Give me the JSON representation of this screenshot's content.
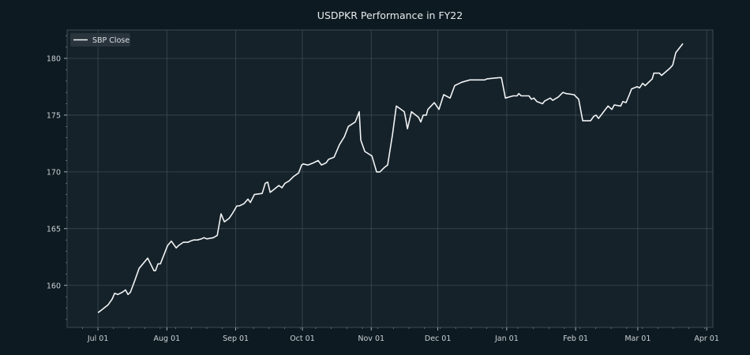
{
  "chart_data": {
    "type": "line",
    "title": "USDPKR Performance in FY22",
    "xlabel": "",
    "ylabel": "",
    "x_units": "days since 2021-07-01",
    "xlim": [
      -13.9,
      276.8
    ],
    "ylim": [
      156.3,
      182.5
    ],
    "grid": true,
    "legend_position": "top-left",
    "x_ticks": [
      {
        "value": 0,
        "label": "Jul 01"
      },
      {
        "value": 31,
        "label": "Aug 01"
      },
      {
        "value": 62,
        "label": "Sep 01"
      },
      {
        "value": 92,
        "label": "Oct 01"
      },
      {
        "value": 123,
        "label": "Nov 01"
      },
      {
        "value": 153,
        "label": "Dec 01"
      },
      {
        "value": 184,
        "label": "Jan 01"
      },
      {
        "value": 215,
        "label": "Feb 01"
      },
      {
        "value": 243,
        "label": "Mar 01"
      },
      {
        "value": 274,
        "label": "Apr 01"
      }
    ],
    "y_ticks": [
      {
        "value": 160,
        "label": "160"
      },
      {
        "value": 165,
        "label": "165"
      },
      {
        "value": 170,
        "label": "170"
      },
      {
        "value": 175,
        "label": "175"
      },
      {
        "value": 180,
        "label": "180"
      }
    ],
    "series": [
      {
        "name": "SBP Close",
        "color": "#f2f4f5",
        "x": [
          0,
          1.4,
          4.6,
          6.4,
          7.5,
          8.9,
          11,
          12.4,
          13.5,
          14.6,
          16.7,
          18.5,
          22.4,
          25.2,
          25.9,
          27,
          28.1,
          31.3,
          33,
          35.2,
          36.2,
          38.4,
          39.8,
          40.5,
          41.6,
          43,
          44.8,
          46.6,
          47.6,
          49,
          51.9,
          53.7,
          55.4,
          56.9,
          59,
          60.4,
          62.5,
          63.6,
          65.7,
          67.5,
          68.6,
          70.4,
          73.9,
          75.3,
          76.4,
          77.5,
          78.9,
          81.4,
          82.8,
          84.2,
          86,
          88.1,
          90.3,
          91.7,
          92.4,
          94.5,
          97,
          98.1,
          99.1,
          100.6,
          102.7,
          103.8,
          106.3,
          108.7,
          110.9,
          112.7,
          115.8,
          117.6,
          118.3,
          120.1,
          123.3,
          125.4,
          126.9,
          129,
          130.4,
          132.6,
          134.3,
          137.9,
          138.6,
          139.3,
          141.1,
          144.3,
          145.3,
          146.4,
          147.8,
          148.5,
          151.4,
          153.5,
          155.6,
          158.5,
          160.6,
          163.8,
          167.4,
          170.2,
          174.1,
          175.2,
          180.5,
          181.6,
          183.4,
          186.9,
          188.7,
          189.4,
          190.5,
          194,
          195.1,
          196.2,
          197.6,
          200.1,
          201.1,
          203.6,
          204.7,
          207.2,
          209.3,
          210.7,
          214.3,
          216.4,
          218.2,
          221.7,
          223.2,
          224.2,
          225.3,
          229.6,
          231.3,
          232.4,
          235.3,
          236.3,
          237.7,
          239.2,
          240.2,
          242.7,
          243.8,
          245.2,
          246.3,
          249.5,
          250.2,
          252.7,
          253.7,
          257.3,
          258.7,
          260.1,
          263.3
        ],
        "y": [
          157.6,
          157.8,
          158.3,
          158.8,
          159.3,
          159.2,
          159.4,
          159.6,
          159.2,
          159.4,
          160.5,
          161.5,
          162.4,
          161.3,
          161.3,
          161.9,
          161.9,
          163.5,
          163.9,
          163.3,
          163.5,
          163.8,
          163.8,
          163.8,
          163.9,
          164.0,
          164.0,
          164.1,
          164.2,
          164.1,
          164.2,
          164.4,
          166.3,
          165.6,
          165.9,
          166.3,
          167.0,
          167.0,
          167.2,
          167.6,
          167.3,
          168.0,
          168.1,
          169.0,
          169.1,
          168.2,
          168.4,
          168.8,
          168.6,
          169.0,
          169.2,
          169.6,
          169.9,
          170.6,
          170.7,
          170.6,
          170.8,
          170.9,
          171.0,
          170.6,
          170.8,
          171.1,
          171.3,
          172.4,
          173.1,
          174.0,
          174.4,
          175.3,
          172.8,
          171.8,
          171.4,
          170.0,
          170.0,
          170.4,
          170.6,
          173.3,
          175.8,
          175.3,
          174.6,
          173.8,
          175.3,
          174.8,
          174.4,
          175.0,
          175.0,
          175.5,
          176.1,
          175.5,
          176.8,
          176.5,
          177.6,
          177.9,
          178.1,
          178.1,
          178.1,
          178.2,
          178.3,
          178.3,
          176.5,
          176.7,
          176.7,
          176.9,
          176.7,
          176.7,
          176.4,
          176.5,
          176.2,
          176.0,
          176.25,
          176.5,
          176.3,
          176.6,
          177.0,
          176.9,
          176.8,
          176.4,
          174.5,
          174.5,
          174.9,
          175.0,
          174.7,
          175.8,
          175.5,
          175.9,
          175.8,
          176.2,
          176.1,
          176.8,
          177.3,
          177.5,
          177.4,
          177.8,
          177.6,
          178.2,
          178.7,
          178.7,
          178.5,
          179.1,
          179.4,
          180.5,
          181.3
        ]
      }
    ]
  }
}
